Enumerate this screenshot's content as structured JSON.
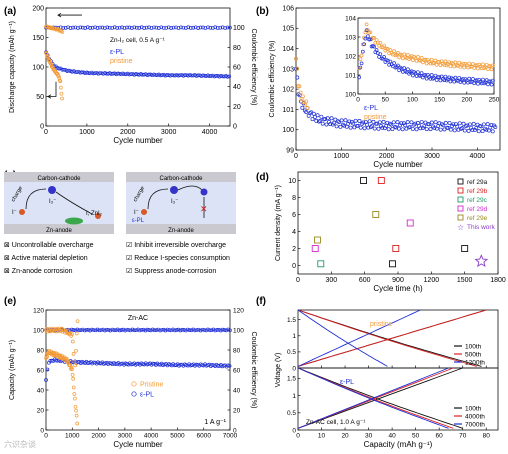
{
  "watermark": "六识杂谈",
  "colors": {
    "epl": "#1f2fd6",
    "pristine": "#f39a35",
    "black": "#111111",
    "cathode": "#c9c9cf",
    "anode": "#c9c9cf",
    "electrolyte": "#dce3f6"
  },
  "chart_data": [
    {
      "id": "a",
      "type": "scatter",
      "panel_label": "(a)",
      "xlabel": "Cycle number",
      "ylabel": "Discharge capacity (mAh g⁻¹)",
      "ylabel_right": "Coulombic efficiency (%)",
      "xlim": [
        0,
        4500
      ],
      "ylim": [
        0,
        200
      ],
      "ylim_right": [
        0,
        120
      ],
      "xticks": [
        0,
        1000,
        2000,
        3000,
        4000
      ],
      "yticks": [
        0,
        50,
        100,
        150,
        200
      ],
      "yticks_right": [
        0,
        20,
        40,
        60,
        80,
        100
      ],
      "annotation": "Zn-I₂ cell, 0.5 A g⁻¹",
      "legend": [
        "ε-PL",
        "pristine"
      ],
      "series": [
        {
          "name": "ε-PL",
          "role": "capacity",
          "x": [
            0,
            50,
            100,
            150,
            200,
            300,
            400,
            500,
            700,
            1000,
            1500,
            2000,
            2500,
            3000,
            3500,
            4000,
            4500
          ],
          "y": [
            125,
            118,
            112,
            106,
            102,
            98,
            96,
            94,
            92,
            90,
            89,
            88,
            87,
            86,
            86,
            85,
            84
          ]
        },
        {
          "name": "pristine",
          "role": "capacity",
          "x": [
            0,
            50,
            100,
            150,
            200,
            250,
            300,
            350,
            400
          ],
          "y": [
            124,
            115,
            108,
            100,
            95,
            90,
            86,
            75,
            40
          ]
        },
        {
          "name": "ε-PL",
          "role": "CE",
          "x": [
            0,
            4500
          ],
          "y": [
            100,
            100
          ]
        },
        {
          "name": "pristine",
          "role": "CE",
          "x": [
            0,
            100,
            200,
            300,
            400
          ],
          "y": [
            101,
            100,
            99,
            98,
            96
          ]
        }
      ]
    },
    {
      "id": "b",
      "type": "scatter",
      "panel_label": "(b)",
      "xlabel": "Cycle number",
      "ylabel": "Coulombic efficiency (%)",
      "xlim": [
        0,
        4500
      ],
      "ylim": [
        99,
        106
      ],
      "xticks": [
        0,
        1000,
        2000,
        3000,
        4000
      ],
      "yticks": [
        99,
        100,
        101,
        102,
        103,
        104,
        105,
        106
      ],
      "series": [
        {
          "name": "ε-PL",
          "x": [
            0,
            50,
            100,
            200,
            300,
            500,
            1000,
            2000,
            3000,
            4000
          ],
          "y": [
            103,
            102,
            101.4,
            101,
            100.8,
            100.5,
            100.3,
            100.2,
            100.2,
            100.1
          ]
        },
        {
          "name": "pristine",
          "x": [
            0,
            50,
            100,
            150,
            200,
            250
          ],
          "y": [
            103.5,
            102.3,
            101.8,
            101.5,
            101.3,
            101.2
          ]
        }
      ],
      "inset": {
        "xlim": [
          0,
          250
        ],
        "ylim": [
          100,
          104
        ],
        "xticks": [
          0,
          50,
          100,
          150,
          200,
          250
        ],
        "yticks": [
          100,
          101,
          102,
          103,
          104
        ],
        "legend": [
          "ε-PL",
          "pristine"
        ],
        "series": [
          {
            "name": "ε-PL",
            "x": [
              0,
              15,
              25,
              40,
              60,
              80,
              100,
              130,
              160,
              200,
              250
            ],
            "y": [
              100.5,
              103.3,
              102.6,
              102,
              101.6,
              101.3,
              101.1,
              100.9,
              100.8,
              100.7,
              100.6
            ]
          },
          {
            "name": "pristine",
            "x": [
              0,
              15,
              25,
              40,
              60,
              80,
              100,
              130,
              160,
              200,
              250
            ],
            "y": [
              101,
              103.6,
              103,
              102.6,
              102.2,
              102,
              101.9,
              101.7,
              101.6,
              101.5,
              101.4
            ]
          }
        ]
      }
    },
    {
      "id": "d",
      "type": "scatter",
      "panel_label": "(d)",
      "xlabel": "Cycle time (h)",
      "ylabel": "Current density (mA g⁻¹)",
      "xlim": [
        0,
        1800
      ],
      "ylim": [
        -1,
        11
      ],
      "xticks": [
        0,
        300,
        600,
        900,
        1200,
        1500,
        1800
      ],
      "yticks": [
        0,
        2,
        4,
        6,
        8,
        10
      ],
      "series": [
        {
          "name": "ref 29a",
          "x": [
            590,
            850,
            1500
          ],
          "y": [
            10,
            0.2,
            2
          ]
        },
        {
          "name": "ref 29b",
          "x": [
            750,
            880
          ],
          "y": [
            10,
            2
          ]
        },
        {
          "name": "ref 29c",
          "x": [
            205
          ],
          "y": [
            0.2
          ]
        },
        {
          "name": "ref 29d",
          "x": [
            155,
            1010
          ],
          "y": [
            2,
            5
          ]
        },
        {
          "name": "ref 29e",
          "x": [
            175,
            700
          ],
          "y": [
            3,
            6
          ]
        },
        {
          "name": "This work",
          "x": [
            1650
          ],
          "y": [
            0.5
          ]
        }
      ]
    },
    {
      "id": "e",
      "type": "scatter",
      "panel_label": "(e)",
      "xlabel": "Cycle number",
      "ylabel": "Capacity (mAh g⁻¹)",
      "ylabel_right": "Coulombic efficiency (%)",
      "xlim": [
        0,
        7000
      ],
      "ylim": [
        0,
        120
      ],
      "ylim_right": [
        0,
        120
      ],
      "xticks": [
        0,
        1000,
        2000,
        3000,
        4000,
        5000,
        6000,
        7000
      ],
      "yticks": [
        0,
        20,
        40,
        60,
        80,
        100,
        120
      ],
      "yticks_right": [
        0,
        20,
        40,
        60,
        80,
        100,
        120
      ],
      "title": "Zn-AC",
      "annotation": "1 A g⁻¹",
      "legend": [
        "Pristine",
        "ε-PL"
      ],
      "series": [
        {
          "name": "Pristine",
          "role": "capacity",
          "x": [
            0,
            100,
            300,
            500,
            800,
            1000,
            1100,
            1200
          ],
          "y": [
            72,
            78,
            76,
            74,
            70,
            60,
            30,
            5
          ]
        },
        {
          "name": "ε-PL",
          "role": "capacity",
          "x": [
            0,
            100,
            300,
            700,
            1000,
            2000,
            3000,
            4000,
            5000,
            6000,
            7000
          ],
          "y": [
            50,
            68,
            70,
            69,
            68,
            67,
            66,
            66,
            65,
            65,
            64
          ]
        },
        {
          "name": "Pristine",
          "role": "CE",
          "x": [
            0,
            200,
            400,
            600,
            800,
            1000,
            1100,
            1200
          ],
          "y": [
            100,
            100,
            100,
            100,
            98,
            95,
            60,
            110
          ]
        },
        {
          "name": "ε-PL",
          "role": "CE",
          "x": [
            0,
            7000
          ],
          "y": [
            100,
            100
          ]
        }
      ]
    },
    {
      "id": "f",
      "type": "line",
      "panel_label": "(f)",
      "xlabel": "Capacity (mAh g⁻¹)",
      "ylabel": "Voltage (V)",
      "xlim": [
        0,
        85
      ],
      "xticks": [
        0,
        10,
        20,
        30,
        40,
        50,
        60,
        70,
        80
      ],
      "ylim": [
        0,
        1.8
      ],
      "yticks": [
        0.0,
        0.5,
        1.0,
        1.5
      ],
      "subplots": [
        {
          "label": "pristine",
          "legend": [
            "100th",
            "500th",
            "1200th"
          ],
          "series": [
            {
              "name": "100th",
              "charge_end": 80,
              "discharge_end": 78
            },
            {
              "name": "500th",
              "charge_end": 80,
              "discharge_end": 76
            },
            {
              "name": "1200th",
              "charge_end": 52,
              "discharge_end": 38
            }
          ]
        },
        {
          "label": "ε-PL",
          "annotation": "Zn-AC cell, 1.0 A g⁻¹",
          "legend": [
            "100th",
            "4000th",
            "7000th"
          ],
          "series": [
            {
              "name": "100th",
              "charge_end": 70,
              "discharge_end": 70
            },
            {
              "name": "4000th",
              "charge_end": 66,
              "discharge_end": 66
            },
            {
              "name": "7000th",
              "charge_end": 64,
              "discharge_end": 64
            }
          ]
        }
      ]
    }
  ],
  "panel_c": {
    "panel_label": "(c)",
    "left": {
      "cathode": "Carbon-cathode",
      "anode": "Zn-anode",
      "charge": "charge",
      "iodide": "I⁻",
      "triiodide": "I₃⁻",
      "products": "I; ZnI₂"
    },
    "right": {
      "cathode": "Carbon-cathode",
      "anode": "Zn-anode",
      "charge": "charge",
      "iodide": "I⁻",
      "triiodide": "I₃⁻",
      "additive": "ε-PL"
    },
    "problems": [
      "Uncontrollable overcharge",
      "Active material depletion",
      "Zn-anode corrosion"
    ],
    "solutions": [
      "Inhibit irreversible overcharge",
      "Reduce I-species consumption",
      "Suppress anode-corrosion"
    ],
    "problem_mark": "⊠",
    "solution_mark": "☑"
  }
}
